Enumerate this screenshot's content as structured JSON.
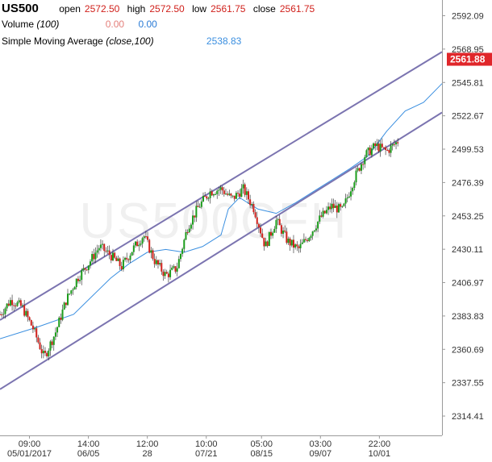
{
  "header": {
    "symbol": "US500",
    "open_label": "open",
    "open_value": "2572.50",
    "high_label": "high",
    "high_value": "2572.50",
    "low_label": "low",
    "low_value": "2561.75",
    "close_label": "close",
    "close_value": "2561.75",
    "volume_label": "Volume",
    "volume_param": "(100)",
    "volume_value_1": "0.00",
    "volume_value_2": "0.00",
    "sma_label": "Simple Moving Average",
    "sma_param": "(close,100)",
    "sma_value": "2538.83"
  },
  "watermark": "US500CFH",
  "last_price_tag": "2561.88",
  "colors": {
    "up_candle": "#1a9c1a",
    "down_candle": "#d0201b",
    "channel": "#7b74b0",
    "sma": "#3b8fe0",
    "price_tag": "#e0262a",
    "grid_axis": "#9a9a9a"
  },
  "chart_data": {
    "type": "line",
    "title": "US500",
    "ylim": [
      2301.0,
      2603.0
    ],
    "yticks": [
      "2592.09",
      "2568.95",
      "2545.81",
      "2522.67",
      "2499.53",
      "2476.39",
      "2453.25",
      "2430.11",
      "2406.97",
      "2383.83",
      "2360.69",
      "2337.55",
      "2314.41"
    ],
    "xticks": [
      {
        "top": "09:00",
        "bottom": "05/01/2017"
      },
      {
        "top": "14:00",
        "bottom": "06/05"
      },
      {
        "top": "12:00",
        "bottom": "28"
      },
      {
        "top": "10:00",
        "bottom": "07/21"
      },
      {
        "top": "05:00",
        "bottom": "08/15"
      },
      {
        "top": "03:00",
        "bottom": "09/07"
      },
      {
        "top": "22:00",
        "bottom": "10/01"
      }
    ],
    "series": [
      {
        "kind": "price",
        "x": [
          0,
          3,
          6,
          9,
          12,
          15,
          18,
          21,
          24,
          27,
          30,
          33,
          36,
          39,
          42,
          45,
          48,
          51,
          54,
          57,
          60,
          63,
          66,
          69,
          72,
          75,
          78,
          81,
          84,
          87,
          90,
          93,
          96,
          99,
          102,
          105,
          108
        ],
        "values": [
          2385,
          2395,
          2390,
          2375,
          2355,
          2372,
          2395,
          2410,
          2420,
          2432,
          2426,
          2418,
          2430,
          2440,
          2422,
          2412,
          2417,
          2446,
          2460,
          2470,
          2472,
          2465,
          2472,
          2458,
          2432,
          2450,
          2436,
          2430,
          2440,
          2452,
          2460,
          2457,
          2478,
          2495,
          2502,
          2498,
          2505
        ]
      },
      {
        "name": "Simple Moving Average",
        "x": [
          0,
          10,
          20,
          30,
          35,
          40,
          45,
          50,
          55,
          60,
          62,
          65,
          70,
          75,
          80,
          85,
          90,
          95,
          100,
          105,
          110,
          115,
          120
        ],
        "values": [
          2368,
          2376,
          2385,
          2410,
          2420,
          2428,
          2430,
          2428,
          2432,
          2440,
          2458,
          2466,
          2458,
          2455,
          2462,
          2470,
          2478,
          2486,
          2495,
          2512,
          2526,
          2532,
          2545
        ]
      }
    ],
    "channel_lines": [
      {
        "x": [
          0,
          120
        ],
        "values": [
          2381,
          2567
        ]
      },
      {
        "x": [
          0,
          120
        ],
        "values": [
          2333,
          2525
        ]
      }
    ]
  }
}
